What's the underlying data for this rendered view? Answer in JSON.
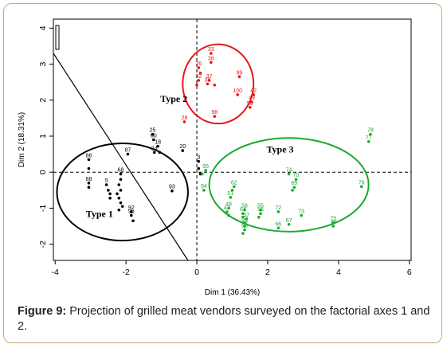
{
  "figure_label": "Figure 9:",
  "figure_caption": " Projection of grilled meat vendors surveyed on the factorial axes 1 and 2.",
  "chart_data": {
    "type": "scatter",
    "xlabel": "Dim 1 (36.43%)",
    "ylabel": "Dim 2 (18.31%)",
    "xlim": [
      -4.05,
      6.05
    ],
    "ylim": [
      -2.45,
      4.25
    ],
    "x_ticks": [
      "-4",
      "-2",
      "0",
      "2",
      "4",
      "6"
    ],
    "x_tick_values": [
      -4,
      -2,
      0,
      2,
      4,
      6
    ],
    "y_ticks": [
      "-2",
      "-1",
      "0",
      "1",
      "2",
      "3",
      "4"
    ],
    "y_tick_values": [
      -2,
      -1,
      0,
      1,
      2,
      3,
      4
    ],
    "groups": [
      {
        "name": "Type 1",
        "color": "#000000",
        "ellipse": {
          "cx": -2.1,
          "cy": -0.55,
          "rx": 1.85,
          "ry": 1.35
        },
        "label_pos": [
          -2.75,
          -1.25
        ],
        "points": [
          {
            "x": -1.25,
            "y": 1.05,
            "label": "25"
          },
          {
            "x": -1.22,
            "y": 0.9,
            "label": "60"
          },
          {
            "x": -1.1,
            "y": 0.72,
            "label": "18"
          },
          {
            "x": -1.2,
            "y": 0.55,
            "label": "24"
          },
          {
            "x": -1.05,
            "y": 0.55,
            "label": ""
          },
          {
            "x": -1.95,
            "y": 0.5,
            "label": "87"
          },
          {
            "x": -0.4,
            "y": 0.6,
            "label": "20"
          },
          {
            "x": -3.05,
            "y": 0.35,
            "label": "86"
          },
          {
            "x": -3.05,
            "y": 0.1,
            "label": ""
          },
          {
            "x": -3.05,
            "y": -0.3,
            "label": "88"
          },
          {
            "x": -3.05,
            "y": -0.42,
            "label": ""
          },
          {
            "x": -2.55,
            "y": -0.35,
            "label": "5"
          },
          {
            "x": -2.5,
            "y": -0.5,
            "label": ""
          },
          {
            "x": -2.45,
            "y": -0.6,
            "label": ""
          },
          {
            "x": -2.45,
            "y": -0.72,
            "label": ""
          },
          {
            "x": -2.15,
            "y": -0.05,
            "label": "68"
          },
          {
            "x": -2.15,
            "y": -0.2,
            "label": ""
          },
          {
            "x": -2.2,
            "y": -0.35,
            "label": ""
          },
          {
            "x": -2.15,
            "y": -0.5,
            "label": ""
          },
          {
            "x": -2.25,
            "y": -0.6,
            "label": ""
          },
          {
            "x": -2.2,
            "y": -0.72,
            "label": ""
          },
          {
            "x": -2.15,
            "y": -0.85,
            "label": ""
          },
          {
            "x": -2.1,
            "y": -0.95,
            "label": ""
          },
          {
            "x": -2.2,
            "y": -1.05,
            "label": ""
          },
          {
            "x": -1.85,
            "y": -1.1,
            "label": "92"
          },
          {
            "x": -1.85,
            "y": -1.2,
            "label": "96"
          },
          {
            "x": -1.8,
            "y": -1.35,
            "label": ""
          },
          {
            "x": -0.7,
            "y": -0.52,
            "label": "93"
          },
          {
            "x": 0.05,
            "y": 0.3,
            "label": "3"
          },
          {
            "x": 0.05,
            "y": 0.1,
            "label": ""
          },
          {
            "x": 0.1,
            "y": -0.05,
            "label": ""
          }
        ]
      },
      {
        "name": "Type 2",
        "color": "#e8171c",
        "ellipse": {
          "cx": 0.6,
          "cy": 2.45,
          "rx": 1.0,
          "ry": 1.1
        },
        "label_pos": [
          -0.65,
          1.95
        ],
        "points": [
          {
            "x": 0.4,
            "y": 3.3,
            "label": "33"
          },
          {
            "x": 0.4,
            "y": 3.05,
            "label": "36"
          },
          {
            "x": 0.05,
            "y": 2.9,
            "label": "26"
          },
          {
            "x": 0.1,
            "y": 2.75,
            "label": ""
          },
          {
            "x": 0.05,
            "y": 2.55,
            "label": "32"
          },
          {
            "x": 0.0,
            "y": 2.42,
            "label": ""
          },
          {
            "x": 0.35,
            "y": 2.55,
            "label": "37"
          },
          {
            "x": 0.3,
            "y": 2.45,
            "label": "38"
          },
          {
            "x": 0.5,
            "y": 2.42,
            "label": ""
          },
          {
            "x": 1.2,
            "y": 2.65,
            "label": "99"
          },
          {
            "x": 1.15,
            "y": 2.15,
            "label": "100"
          },
          {
            "x": 1.6,
            "y": 2.15,
            "label": "42"
          },
          {
            "x": 1.55,
            "y": 1.95,
            "label": "49"
          },
          {
            "x": 1.5,
            "y": 1.8,
            "label": "50"
          },
          {
            "x": 0.5,
            "y": 1.55,
            "label": "98"
          },
          {
            "x": -0.35,
            "y": 1.4,
            "label": "28"
          }
        ]
      },
      {
        "name": "Type 3",
        "color": "#1aab2d",
        "ellipse": {
          "cx": 2.6,
          "cy": -0.35,
          "rx": 2.25,
          "ry": 1.3
        },
        "label_pos": [
          2.35,
          0.55
        ],
        "points": [
          {
            "x": 4.9,
            "y": 1.05,
            "label": "78"
          },
          {
            "x": 4.85,
            "y": 0.85,
            "label": "77"
          },
          {
            "x": 4.65,
            "y": -0.4,
            "label": "76"
          },
          {
            "x": 0.25,
            "y": 0.05,
            "label": "95"
          },
          {
            "x": 0.15,
            "y": -0.05,
            "label": ""
          },
          {
            "x": 0.2,
            "y": -0.5,
            "label": "94"
          },
          {
            "x": 2.6,
            "y": -0.05,
            "label": "74"
          },
          {
            "x": 2.8,
            "y": -0.2,
            "label": "70"
          },
          {
            "x": 2.75,
            "y": -0.42,
            "label": "69"
          },
          {
            "x": 2.7,
            "y": -0.5,
            "label": ""
          },
          {
            "x": 1.05,
            "y": -0.4,
            "label": "62"
          },
          {
            "x": 1.0,
            "y": -0.5,
            "label": ""
          },
          {
            "x": 0.95,
            "y": -0.7,
            "label": "51"
          },
          {
            "x": 0.9,
            "y": -1.0,
            "label": "48"
          },
          {
            "x": 0.85,
            "y": -1.1,
            "label": "47"
          },
          {
            "x": 0.9,
            "y": -1.2,
            "label": ""
          },
          {
            "x": 1.35,
            "y": -1.05,
            "label": "58"
          },
          {
            "x": 1.3,
            "y": -1.15,
            "label": "64"
          },
          {
            "x": 1.3,
            "y": -1.25,
            "label": ""
          },
          {
            "x": 1.8,
            "y": -1.05,
            "label": "55"
          },
          {
            "x": 1.8,
            "y": -1.15,
            "label": "56"
          },
          {
            "x": 1.75,
            "y": -1.25,
            "label": ""
          },
          {
            "x": 2.3,
            "y": -1.1,
            "label": "72"
          },
          {
            "x": 2.95,
            "y": -1.2,
            "label": "73"
          },
          {
            "x": 2.6,
            "y": -1.45,
            "label": "67"
          },
          {
            "x": 2.3,
            "y": -1.55,
            "label": "66"
          },
          {
            "x": 1.4,
            "y": -1.3,
            "label": "57"
          },
          {
            "x": 1.35,
            "y": -1.4,
            "label": "52"
          },
          {
            "x": 1.35,
            "y": -1.5,
            "label": "59"
          },
          {
            "x": 1.35,
            "y": -1.6,
            "label": "60"
          },
          {
            "x": 1.3,
            "y": -1.7,
            "label": ""
          },
          {
            "x": 3.85,
            "y": -1.4,
            "label": "75"
          },
          {
            "x": 3.85,
            "y": -1.5,
            "label": "79"
          }
        ]
      }
    ],
    "separator_line": {
      "from": [
        -4.05,
        3.3
      ],
      "to": [
        -0.25,
        -2.45
      ]
    },
    "reference_lines": {
      "x": 0,
      "y": 0
    }
  }
}
